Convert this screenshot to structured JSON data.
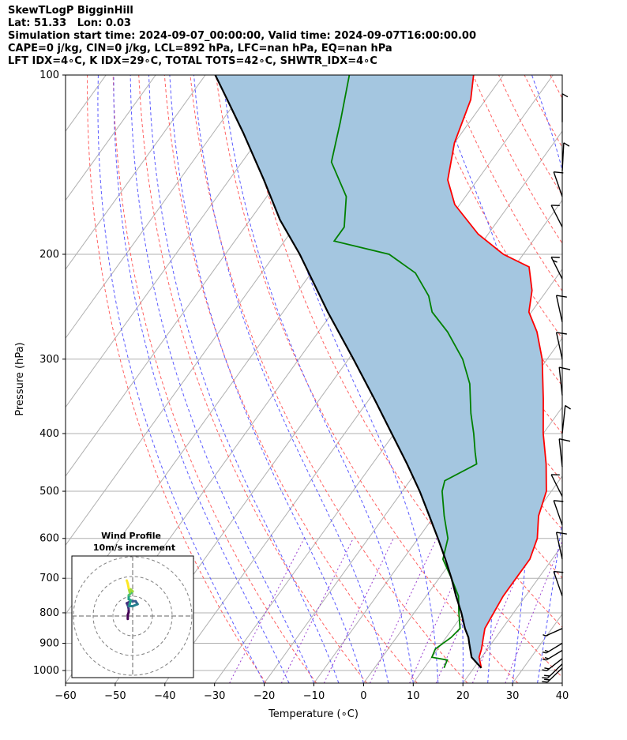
{
  "header": {
    "line1": "SkewTLogP BigginHill",
    "line2": "Lat: 51.33   Lon: 0.03",
    "line3": "Simulation start time: 2024-09-07_00:00:00, Valid time: 2024-09-07T16:00:00.00",
    "line4": "CAPE=0 j/kg, CIN=0 j/kg, LCL=892 hPa, LFC=nan hPa, EQ=nan hPa",
    "line5": "LFT IDX=4∘C, K IDX=29∘C, TOTAL TOTS=42∘C, SHWTR_IDX=4∘C"
  },
  "chart_data": {
    "type": "line",
    "xlabel": "Temperature (∘C)",
    "ylabel": "Pressure (hPa)",
    "xlim": [
      -60,
      40
    ],
    "ylim": [
      1050,
      100
    ],
    "y_scale": "log",
    "skew": true,
    "grid": true,
    "x_ticks": [
      -60,
      -50,
      -40,
      -30,
      -20,
      -10,
      0,
      10,
      20,
      30,
      40
    ],
    "y_ticks": [
      100,
      200,
      300,
      400,
      500,
      600,
      700,
      800,
      900,
      1000
    ],
    "series": [
      {
        "role": "temperature",
        "color": "#ff0000",
        "points": [
          [
            21.5,
            990
          ],
          [
            19.5,
            950
          ],
          [
            18.8,
            920
          ],
          [
            17.5,
            880
          ],
          [
            16.5,
            850
          ],
          [
            16.0,
            800
          ],
          [
            15.5,
            750
          ],
          [
            15.5,
            700
          ],
          [
            15.5,
            650
          ],
          [
            14.0,
            600
          ],
          [
            11.0,
            550
          ],
          [
            9.0,
            500
          ],
          [
            5.0,
            450
          ],
          [
            0.0,
            400
          ],
          [
            -5.0,
            350
          ],
          [
            -11.0,
            300
          ],
          [
            -16.0,
            270
          ],
          [
            -20.5,
            250
          ],
          [
            -23.0,
            230
          ],
          [
            -27.0,
            210
          ],
          [
            -34.0,
            200
          ],
          [
            -42.0,
            185
          ],
          [
            -51.0,
            165
          ],
          [
            -56.0,
            150
          ],
          [
            -60.0,
            130
          ],
          [
            -63.0,
            110
          ],
          [
            -66.0,
            100
          ]
        ]
      },
      {
        "role": "dewpoint",
        "color": "#008000",
        "points": [
          [
            14.0,
            990
          ],
          [
            13.5,
            960
          ],
          [
            10.0,
            950
          ],
          [
            9.5,
            920
          ],
          [
            11.0,
            880
          ],
          [
            11.5,
            850
          ],
          [
            9.0,
            800
          ],
          [
            6.5,
            750
          ],
          [
            2.5,
            700
          ],
          [
            -2.0,
            650
          ],
          [
            -4.0,
            600
          ],
          [
            -8.0,
            550
          ],
          [
            -12.0,
            500
          ],
          [
            -13.0,
            480
          ],
          [
            -9.0,
            450
          ],
          [
            -11.0,
            430
          ],
          [
            -14.0,
            400
          ],
          [
            -17.5,
            370
          ],
          [
            -22.0,
            330
          ],
          [
            -27.0,
            300
          ],
          [
            -34.0,
            270
          ],
          [
            -40.0,
            250
          ],
          [
            -43.0,
            235
          ],
          [
            -49.0,
            215
          ],
          [
            -57.0,
            200
          ],
          [
            -70.0,
            190
          ],
          [
            -70.0,
            180
          ],
          [
            -74.0,
            160
          ],
          [
            -82.0,
            140
          ],
          [
            -86.0,
            120
          ],
          [
            -91.0,
            100
          ]
        ]
      },
      {
        "role": "parcel",
        "color": "#000000",
        "points": [
          [
            21.5,
            990
          ],
          [
            18.0,
            950
          ],
          [
            15.5,
            900
          ],
          [
            14.5,
            880
          ],
          [
            12.5,
            850
          ],
          [
            9.5,
            800
          ],
          [
            6.0,
            750
          ],
          [
            2.5,
            700
          ],
          [
            -1.5,
            650
          ],
          [
            -6.0,
            600
          ],
          [
            -11.0,
            550
          ],
          [
            -16.5,
            500
          ],
          [
            -23.0,
            450
          ],
          [
            -30.5,
            400
          ],
          [
            -39.0,
            350
          ],
          [
            -49.0,
            300
          ],
          [
            -61.0,
            250
          ],
          [
            -75.0,
            200
          ],
          [
            -84.0,
            175
          ],
          [
            -93.0,
            150
          ],
          [
            -104.0,
            125
          ],
          [
            -112.0,
            110
          ],
          [
            -118.0,
            100
          ]
        ]
      }
    ],
    "shaded_area": {
      "between": [
        "temperature",
        "parcel"
      ],
      "color": "#a4c6e0"
    },
    "reference_lines": {
      "dry_adiabats": {
        "color": "#ff6060",
        "style": "dashed"
      },
      "moist_adiabats": {
        "color": "#5a5aff",
        "style": "dashed"
      },
      "mixing_ratio": {
        "color": "#9b3fd0",
        "style": "dashed"
      }
    },
    "wind_barbs": [
      {
        "p": 990,
        "speed_kt": 20,
        "dir": 240
      },
      {
        "p": 975,
        "speed_kt": 20,
        "dir": 240
      },
      {
        "p": 955,
        "speed_kt": 20,
        "dir": 245
      },
      {
        "p": 925,
        "speed_kt": 20,
        "dir": 250
      },
      {
        "p": 900,
        "speed_kt": 20,
        "dir": 250
      },
      {
        "p": 850,
        "speed_kt": 15,
        "dir": 255
      },
      {
        "p": 750,
        "speed_kt": 10,
        "dir": 330
      },
      {
        "p": 650,
        "speed_kt": 10,
        "dir": 340
      },
      {
        "p": 570,
        "speed_kt": 10,
        "dir": 330
      },
      {
        "p": 510,
        "speed_kt": 10,
        "dir": 320
      },
      {
        "p": 455,
        "speed_kt": 10,
        "dir": 350
      },
      {
        "p": 400,
        "speed_kt": 5,
        "dir": 10
      },
      {
        "p": 345,
        "speed_kt": 10,
        "dir": 350
      },
      {
        "p": 300,
        "speed_kt": 10,
        "dir": 340
      },
      {
        "p": 260,
        "speed_kt": 10,
        "dir": 340
      },
      {
        "p": 220,
        "speed_kt": 15,
        "dir": 320
      },
      {
        "p": 180,
        "speed_kt": 10,
        "dir": 320
      },
      {
        "p": 160,
        "speed_kt": 10,
        "dir": 330
      },
      {
        "p": 145,
        "speed_kt": 5,
        "dir": 5
      },
      {
        "p": 120,
        "speed_kt": 5,
        "dir": 0
      }
    ],
    "hodograph": {
      "title": "Wind Profile",
      "subtitle": "10m/s increment",
      "ring_step_ms": 10,
      "ring_count": 3,
      "colormap": "viridis",
      "points": [
        [
          -2.5,
          -1.5
        ],
        [
          -2.5,
          0.5
        ],
        [
          -2.0,
          2.0
        ],
        [
          -2.0,
          3.5
        ],
        [
          -2.5,
          5.5
        ],
        [
          -3.0,
          6.5
        ],
        [
          -1.0,
          7.5
        ],
        [
          1.5,
          7.5
        ],
        [
          2.5,
          6.0
        ],
        [
          0.0,
          5.0
        ],
        [
          -2.0,
          5.0
        ],
        [
          -1.5,
          6.0
        ],
        [
          -1.0,
          8.0
        ],
        [
          -2.0,
          8.5
        ],
        [
          -2.0,
          10.5
        ],
        [
          -1.0,
          11.5
        ],
        [
          0.0,
          12.5
        ],
        [
          -1.0,
          13.5
        ],
        [
          -1.5,
          12.0
        ],
        [
          -2.0,
          14.0
        ],
        [
          -2.5,
          16.5
        ],
        [
          -3.0,
          18.0
        ]
      ]
    }
  }
}
